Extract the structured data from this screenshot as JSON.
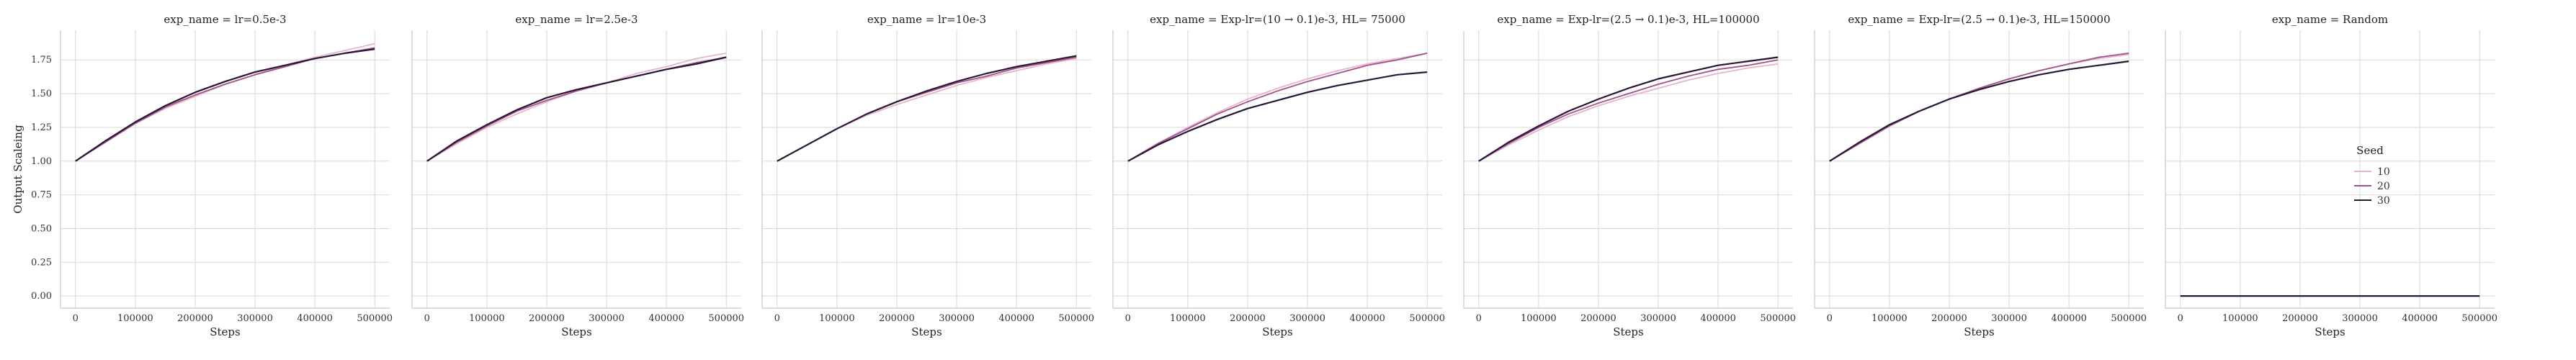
{
  "chart_data": [
    {
      "type": "line",
      "title": "exp_name = lr=0.5e-3",
      "xlabel": "Steps",
      "ylabel": "Output Scaleing",
      "xlim": [
        -25000,
        525000
      ],
      "ylim": [
        -0.09,
        1.97
      ],
      "x_ticks": [
        0,
        100000,
        200000,
        300000,
        400000,
        500000
      ],
      "y_ticks": [
        "0.00",
        "0.25",
        "0.50",
        "0.75",
        "1.00",
        "1.25",
        "1.50",
        "1.75"
      ],
      "grid": true,
      "x": [
        0,
        50000,
        100000,
        150000,
        200000,
        250000,
        300000,
        350000,
        400000,
        450000,
        500000
      ],
      "series": [
        {
          "name": "10",
          "values": [
            1.0,
            1.14,
            1.28,
            1.39,
            1.48,
            1.57,
            1.64,
            1.71,
            1.77,
            1.82,
            1.87
          ]
        },
        {
          "name": "20",
          "values": [
            1.0,
            1.14,
            1.28,
            1.4,
            1.49,
            1.57,
            1.64,
            1.7,
            1.76,
            1.8,
            1.84
          ]
        },
        {
          "name": "30",
          "values": [
            1.0,
            1.15,
            1.29,
            1.41,
            1.51,
            1.59,
            1.66,
            1.71,
            1.76,
            1.8,
            1.83
          ]
        }
      ]
    },
    {
      "type": "line",
      "title": "exp_name = lr=2.5e-3",
      "xlabel": "Steps",
      "ylabel": "",
      "xlim": [
        -25000,
        525000
      ],
      "ylim": [
        -0.09,
        1.97
      ],
      "x_ticks": [
        0,
        100000,
        200000,
        300000,
        400000,
        500000
      ],
      "grid": true,
      "x": [
        0,
        50000,
        100000,
        150000,
        200000,
        250000,
        300000,
        350000,
        400000,
        450000,
        500000
      ],
      "series": [
        {
          "name": "10",
          "values": [
            1.0,
            1.13,
            1.25,
            1.35,
            1.44,
            1.52,
            1.58,
            1.65,
            1.7,
            1.76,
            1.8
          ]
        },
        {
          "name": "20",
          "values": [
            1.0,
            1.14,
            1.26,
            1.37,
            1.45,
            1.52,
            1.58,
            1.63,
            1.68,
            1.73,
            1.77
          ]
        },
        {
          "name": "30",
          "values": [
            1.0,
            1.15,
            1.27,
            1.38,
            1.47,
            1.53,
            1.58,
            1.63,
            1.68,
            1.72,
            1.77
          ]
        }
      ]
    },
    {
      "type": "line",
      "title": "exp_name = lr=10e-3",
      "xlabel": "Steps",
      "ylabel": "",
      "xlim": [
        -25000,
        525000
      ],
      "ylim": [
        -0.09,
        1.97
      ],
      "x_ticks": [
        0,
        100000,
        200000,
        300000,
        400000,
        500000
      ],
      "grid": true,
      "x": [
        0,
        50000,
        100000,
        150000,
        200000,
        250000,
        300000,
        350000,
        400000,
        450000,
        500000
      ],
      "series": [
        {
          "name": "10",
          "values": [
            1.0,
            1.12,
            1.24,
            1.34,
            1.42,
            1.49,
            1.56,
            1.62,
            1.67,
            1.72,
            1.76
          ]
        },
        {
          "name": "20",
          "values": [
            1.0,
            1.12,
            1.24,
            1.35,
            1.44,
            1.51,
            1.58,
            1.63,
            1.69,
            1.73,
            1.77
          ]
        },
        {
          "name": "30",
          "values": [
            1.0,
            1.12,
            1.24,
            1.35,
            1.44,
            1.52,
            1.59,
            1.65,
            1.7,
            1.74,
            1.78
          ]
        }
      ]
    },
    {
      "type": "line",
      "title": "exp_name = Exp-lr=(10 → 0.1)e-3, HL= 75000",
      "xlabel": "Steps",
      "ylabel": "",
      "xlim": [
        -25000,
        525000
      ],
      "ylim": [
        -0.09,
        1.97
      ],
      "x_ticks": [
        0,
        100000,
        200000,
        300000,
        400000,
        500000
      ],
      "grid": true,
      "x": [
        0,
        50000,
        100000,
        150000,
        200000,
        250000,
        300000,
        350000,
        400000,
        450000,
        500000
      ],
      "series": [
        {
          "name": "10",
          "values": [
            1.0,
            1.13,
            1.25,
            1.36,
            1.46,
            1.54,
            1.61,
            1.67,
            1.72,
            1.76,
            1.8
          ]
        },
        {
          "name": "20",
          "values": [
            1.0,
            1.13,
            1.24,
            1.35,
            1.44,
            1.52,
            1.59,
            1.65,
            1.71,
            1.75,
            1.8
          ]
        },
        {
          "name": "30",
          "values": [
            1.0,
            1.12,
            1.22,
            1.31,
            1.39,
            1.45,
            1.51,
            1.56,
            1.6,
            1.64,
            1.66
          ]
        }
      ]
    },
    {
      "type": "line",
      "title": "exp_name = Exp-lr=(2.5 → 0.1)e-3, HL=100000",
      "xlabel": "Steps",
      "ylabel": "",
      "xlim": [
        -25000,
        525000
      ],
      "ylim": [
        -0.09,
        1.97
      ],
      "x_ticks": [
        0,
        100000,
        200000,
        300000,
        400000,
        500000
      ],
      "grid": true,
      "x": [
        0,
        50000,
        100000,
        150000,
        200000,
        250000,
        300000,
        350000,
        400000,
        450000,
        500000
      ],
      "series": [
        {
          "name": "10",
          "values": [
            1.0,
            1.12,
            1.23,
            1.33,
            1.41,
            1.48,
            1.54,
            1.6,
            1.65,
            1.69,
            1.72
          ]
        },
        {
          "name": "20",
          "values": [
            1.0,
            1.13,
            1.25,
            1.35,
            1.43,
            1.5,
            1.57,
            1.63,
            1.68,
            1.71,
            1.75
          ]
        },
        {
          "name": "30",
          "values": [
            1.0,
            1.14,
            1.26,
            1.37,
            1.46,
            1.54,
            1.61,
            1.66,
            1.71,
            1.74,
            1.77
          ]
        }
      ]
    },
    {
      "type": "line",
      "title": "exp_name = Exp-lr=(2.5 → 0.1)e-3, HL=150000",
      "xlabel": "Steps",
      "ylabel": "",
      "xlim": [
        -25000,
        525000
      ],
      "ylim": [
        -0.09,
        1.97
      ],
      "x_ticks": [
        0,
        100000,
        200000,
        300000,
        400000,
        500000
      ],
      "grid": true,
      "x": [
        0,
        50000,
        100000,
        150000,
        200000,
        250000,
        300000,
        350000,
        400000,
        450000,
        500000
      ],
      "series": [
        {
          "name": "10",
          "values": [
            1.0,
            1.13,
            1.26,
            1.37,
            1.46,
            1.54,
            1.61,
            1.67,
            1.72,
            1.76,
            1.79
          ]
        },
        {
          "name": "20",
          "values": [
            1.0,
            1.13,
            1.26,
            1.37,
            1.46,
            1.54,
            1.61,
            1.67,
            1.72,
            1.77,
            1.8
          ]
        },
        {
          "name": "30",
          "values": [
            1.0,
            1.14,
            1.27,
            1.37,
            1.46,
            1.53,
            1.59,
            1.64,
            1.68,
            1.71,
            1.74
          ]
        }
      ]
    },
    {
      "type": "line",
      "title": "exp_name = Random",
      "xlabel": "Steps",
      "ylabel": "",
      "xlim": [
        -25000,
        525000
      ],
      "ylim": [
        -0.09,
        1.97
      ],
      "x_ticks": [
        0,
        100000,
        200000,
        300000,
        400000,
        500000
      ],
      "grid": true,
      "x": [
        0,
        100000,
        200000,
        300000,
        400000,
        500000
      ],
      "series": [
        {
          "name": "10",
          "values": [
            0.0,
            0.0,
            0.0,
            0.0,
            0.0,
            0.0
          ]
        },
        {
          "name": "20",
          "values": [
            0.0,
            0.0,
            0.0,
            0.0,
            0.0,
            0.0
          ]
        },
        {
          "name": "30",
          "values": [
            0.0,
            0.0,
            0.0,
            0.0,
            0.0,
            0.0
          ]
        }
      ]
    }
  ],
  "legend": {
    "title": "Seed",
    "placement": "right",
    "entries": [
      {
        "label": "10",
        "color": "#e8b4c8"
      },
      {
        "label": "20",
        "color": "#a0528c"
      },
      {
        "label": "30",
        "color": "#2a1636"
      }
    ]
  },
  "colors": {
    "10": "#e8b4c8",
    "20": "#a0528c",
    "30": "#2a1636"
  }
}
